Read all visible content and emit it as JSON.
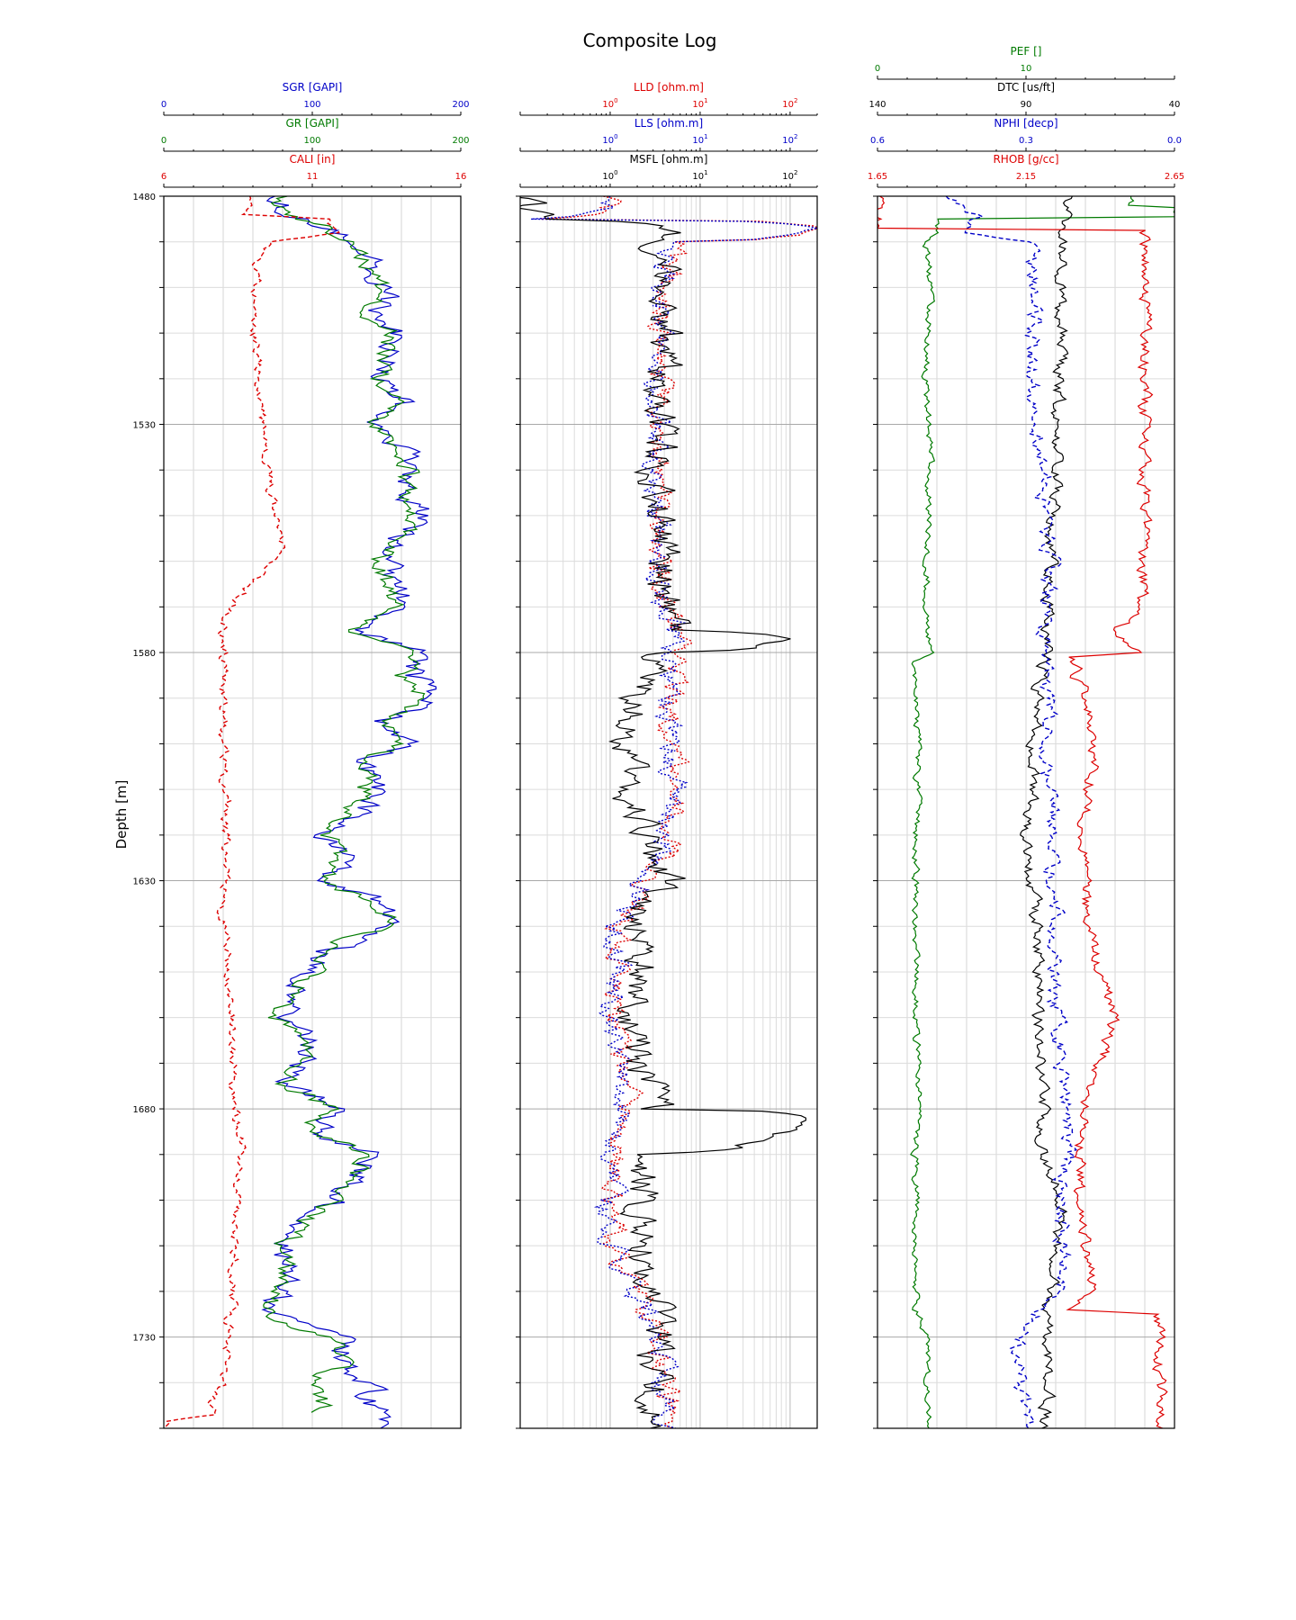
{
  "chart_data": {
    "type": "line",
    "title": "Composite Log",
    "ylabel": "Depth [m]",
    "ylim": [
      1750,
      1480
    ],
    "yticks": [
      1480,
      1530,
      1580,
      1630,
      1680,
      1730
    ],
    "grid": true,
    "colors": {
      "blue": "#0000c8",
      "green": "#007a00",
      "red": "#dd0000",
      "black": "#000000",
      "purple": "#800080"
    },
    "tracks": [
      {
        "name": "gamma-caliper",
        "scale": "linear",
        "curves": [
          {
            "name": "SGR [GAPI]",
            "color": "#0000c8",
            "style": "solid",
            "range": [
              0,
              200
            ],
            "ticklabels": [
              "0",
              "100",
              "200"
            ],
            "depth": [
              1480,
              1483,
              1487,
              1490,
              1494,
              1500,
              1505,
              1510,
              1515,
              1520,
              1525,
              1530,
              1535,
              1540,
              1545,
              1550,
              1555,
              1560,
              1565,
              1570,
              1575,
              1580,
              1585,
              1590,
              1595,
              1600,
              1605,
              1610,
              1615,
              1620,
              1625,
              1630,
              1635,
              1640,
              1645,
              1650,
              1655,
              1660,
              1665,
              1670,
              1675,
              1680,
              1685,
              1690,
              1695,
              1700,
              1705,
              1710,
              1715,
              1720,
              1725,
              1730,
              1735,
              1740,
              1745,
              1750
            ],
            "values": [
              83,
              78,
              115,
              128,
              140,
              150,
              145,
              158,
              155,
              150,
              162,
              145,
              160,
              170,
              165,
              175,
              160,
              150,
              155,
              165,
              130,
              175,
              165,
              185,
              150,
              160,
              135,
              140,
              130,
              115,
              120,
              110,
              150,
              155,
              110,
              100,
              90,
              80,
              100,
              95,
              85,
              120,
              100,
              145,
              130,
              115,
              95,
              82,
              85,
              75,
              72,
              115,
              125,
              135,
              140,
              145
            ],
            "swing": 18
          },
          {
            "name": "GR [GAPI]",
            "color": "#007a00",
            "style": "solid",
            "range": [
              0,
              200
            ],
            "ticklabels": [
              "0",
              "100",
              "200"
            ],
            "depth": [
              1480,
              1483,
              1487,
              1490,
              1494,
              1500,
              1505,
              1510,
              1515,
              1520,
              1525,
              1530,
              1535,
              1540,
              1545,
              1550,
              1555,
              1560,
              1565,
              1570,
              1575,
              1580,
              1585,
              1590,
              1595,
              1600,
              1605,
              1610,
              1615,
              1620,
              1625,
              1630,
              1635,
              1640,
              1645,
              1650,
              1655,
              1660,
              1665,
              1670,
              1675,
              1680,
              1685,
              1690,
              1695,
              1700,
              1705,
              1710,
              1715,
              1720,
              1725,
              1730,
              1735,
              1740,
              1745,
              1746.5
            ],
            "values": [
              80,
              76,
              112,
              125,
              135,
              145,
              140,
              152,
              150,
              146,
              156,
              140,
              155,
              165,
              160,
              168,
              155,
              146,
              150,
              158,
              128,
              168,
              160,
              178,
              146,
              155,
              132,
              136,
              126,
              112,
              118,
              108,
              145,
              150,
              108,
              98,
              88,
              78,
              98,
              92,
              83,
              115,
              98,
              140,
              125,
              112,
              92,
              80,
              82,
              72,
              70,
              112,
              120,
              105,
              105,
              105
            ],
            "swing": 14
          },
          {
            "name": "CALI [in]",
            "color": "#dd0000",
            "style": "dashed",
            "range": [
              6,
              16
            ],
            "ticklabels": [
              "6",
              "11",
              "16"
            ],
            "depth": [
              1480,
              1484,
              1485,
              1488,
              1490,
              1495,
              1500,
              1510,
              1520,
              1530,
              1540,
              1550,
              1556,
              1560,
              1565,
              1570,
              1575,
              1580,
              1600,
              1620,
              1640,
              1645,
              1650,
              1660,
              1670,
              1680,
              1690,
              1700,
              1710,
              1720,
              1730,
              1740,
              1745,
              1747,
              1748.5,
              1750
            ],
            "values": [
              8.8,
              8.8,
              11.5,
              11.7,
              9.6,
              9.2,
              9.1,
              9.0,
              9.2,
              9.3,
              9.5,
              9.7,
              10.0,
              9.6,
              8.9,
              8.3,
              8.0,
              8.0,
              8.0,
              8.1,
              8.0,
              8.2,
              8.2,
              8.3,
              8.3,
              8.4,
              8.7,
              8.5,
              8.4,
              8.3,
              8.2,
              7.9,
              7.6,
              7.8,
              6.0,
              6.0
            ],
            "swing": 0.3
          }
        ]
      },
      {
        "name": "resistivity",
        "scale": "log",
        "range": [
          0.1,
          200
        ],
        "curves": [
          {
            "name": "LLD [ohm.m]",
            "color": "#dd0000",
            "style": "dotted",
            "ticklabels": [
              "10^0",
              "10^1",
              "10^2"
            ],
            "depth": [
              1480,
              1483,
              1485,
              1487,
              1490,
              1500,
              1520,
              1540,
              1560,
              1570,
              1575,
              1580,
              1590,
              1600,
              1610,
              1620,
              1630,
              1640,
              1650,
              1660,
              1670,
              1680,
              1690,
              1700,
              1710,
              1720,
              1730,
              1740,
              1750
            ],
            "values": [
              1.0,
              0.9,
              0.14,
              200,
              5,
              4,
              3.5,
              3.3,
              3.5,
              4,
              6,
              5,
              5,
              5,
              6,
              5,
              2.5,
              1.2,
              1.3,
              1.1,
              1.3,
              1.5,
              1.2,
              1.0,
              1.2,
              1.7,
              3.5,
              4,
              4.5
            ],
            "swing": 1.0
          },
          {
            "name": "LLS [ohm.m]",
            "color": "#0000c8",
            "style": "dotted",
            "ticklabels": [
              "10^0",
              "10^1",
              "10^2"
            ],
            "depth": [
              1480,
              1483,
              1485,
              1487,
              1490,
              1500,
              1520,
              1540,
              1560,
              1570,
              1575,
              1580,
              1590,
              1600,
              1610,
              1620,
              1630,
              1640,
              1650,
              1660,
              1670,
              1680,
              1690,
              1700,
              1710,
              1720,
              1730,
              1740,
              1750
            ],
            "values": [
              0.9,
              0.85,
              0.13,
              150,
              4.6,
              3.8,
              3.4,
              3.2,
              3.3,
              3.8,
              5.5,
              4.6,
              4.4,
              4.6,
              5.2,
              4.6,
              2.3,
              1.1,
              1.2,
              1.0,
              1.2,
              1.4,
              1.1,
              0.95,
              1.1,
              1.6,
              3.4,
              3.8,
              4.2
            ],
            "swing": 1.0
          },
          {
            "name": "MSFL [ohm.m]",
            "color": "#000000",
            "style": "solid",
            "ticklabels": [
              "10^0",
              "10^1",
              "10^2"
            ],
            "depth": [
              1480,
              1483,
              1485,
              1487,
              1490,
              1500,
              1520,
              1540,
              1560,
              1570,
              1575,
              1577,
              1580,
              1590,
              1600,
              1610,
              1620,
              1630,
              1640,
              1650,
              1660,
              1670,
              1680,
              1681,
              1690,
              1700,
              1710,
              1720,
              1730,
              1740,
              1745,
              1750
            ],
            "values": [
              0.1,
              0.12,
              0.15,
              5,
              4,
              4,
              3.5,
              3.6,
              3.8,
              4.5,
              5,
              80,
              3,
              2,
              1.5,
              1.8,
              2.5,
              4,
              2,
              2.5,
              2,
              2.2,
              3,
              140,
              2.5,
              2.2,
              2.4,
              3,
              3.5,
              3,
              3,
              3
            ],
            "swing": 1.5
          }
        ]
      },
      {
        "name": "porosity-density",
        "scale": "linear",
        "curves": [
          {
            "name": "PEF []",
            "color": "#007a00",
            "style": "solid",
            "range": [
              0,
              20
            ],
            "ticklabels": [
              "0",
              "10"
            ],
            "depth": [
              1480,
              1482,
              1482.1,
              1484.5,
              1484.6,
              1488,
              1490,
              1500,
              1520,
              1540,
              1560,
              1575,
              1580,
              1582,
              1600,
              1620,
              1640,
              1660,
              1680,
              1690,
              1700,
              1720,
              1724,
              1730,
              1740,
              1750
            ],
            "values": [
              17,
              17,
              20,
              20,
              4,
              4,
              3.3,
              3.5,
              3.3,
              3.5,
              3.3,
              3.4,
              3.8,
              2.5,
              2.8,
              2.6,
              2.6,
              2.6,
              2.8,
              2.5,
              2.6,
              2.6,
              2.6,
              3.4,
              3.3,
              3.4
            ],
            "swing": 0.45
          },
          {
            "name": "DTC [us/ft]",
            "color": "#000000",
            "style": "solid",
            "range": [
              140,
              40
            ],
            "ticklabels": [
              "140",
              "90",
              "40"
            ],
            "depth": [
              1480,
              1490,
              1500,
              1520,
              1540,
              1560,
              1580,
              1590,
              1600,
              1610,
              1620,
              1630,
              1640,
              1650,
              1660,
              1670,
              1680,
              1690,
              1700,
              1710,
              1720,
              1730,
              1740,
              1750
            ],
            "values": [
              76,
              78,
              78,
              79,
              80,
              82,
              83,
              86,
              87,
              88,
              90,
              89,
              86,
              85,
              86,
              84,
              84,
              85,
              78,
              80,
              82,
              83,
              82,
              84
            ],
            "swing": 4
          },
          {
            "name": "NPHI [decp]",
            "color": "#0000c8",
            "style": "dashed",
            "range": [
              0.6,
              0.0
            ],
            "ticklabels": [
              "0.6",
              "0.3",
              "0.0"
            ],
            "depth": [
              1480,
              1484,
              1488,
              1490,
              1500,
              1520,
              1540,
              1560,
              1575,
              1580,
              1590,
              1600,
              1620,
              1640,
              1660,
              1680,
              1700,
              1720,
              1730,
              1740,
              1750
            ],
            "values": [
              0.45,
              0.4,
              0.42,
              0.29,
              0.28,
              0.29,
              0.27,
              0.25,
              0.26,
              0.27,
              0.25,
              0.26,
              0.25,
              0.24,
              0.24,
              0.21,
              0.23,
              0.22,
              0.32,
              0.31,
              0.3
            ],
            "swing": 0.03
          },
          {
            "name": "RHOB [g/cc]",
            "color": "#dd0000",
            "style": "solid",
            "range": [
              1.65,
              2.65
            ],
            "ticklabels": [
              "1.65",
              "2.15",
              "2.65"
            ],
            "depth": [
              1480,
              1487,
              1487.1,
              1490,
              1510,
              1530,
              1550,
              1570,
              1575,
              1580,
              1581,
              1590,
              1600,
              1620,
              1640,
              1660,
              1680,
              1700,
              1720,
              1724,
              1725,
              1730,
              1740,
              1750
            ],
            "values": [
              1.65,
              1.65,
              2.55,
              2.55,
              2.55,
              2.55,
              2.55,
              2.54,
              2.45,
              2.55,
              2.3,
              2.35,
              2.38,
              2.35,
              2.35,
              2.45,
              2.35,
              2.32,
              2.38,
              2.3,
              2.6,
              2.6,
              2.6,
              2.6
            ],
            "swing": 0.04
          }
        ]
      }
    ]
  }
}
